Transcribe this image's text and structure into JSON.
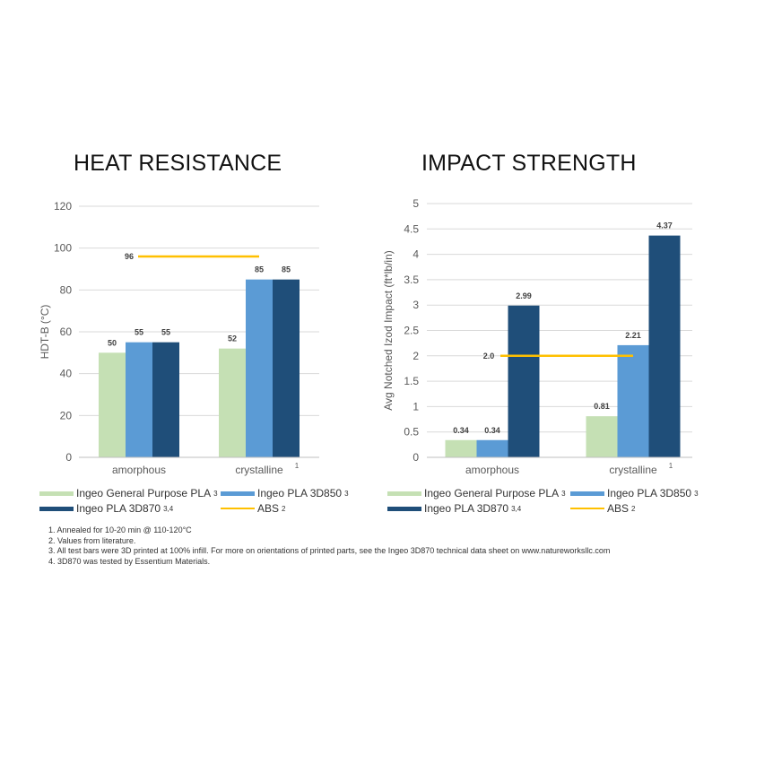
{
  "colors": {
    "general_purpose": "#c5e0b4",
    "pla_3d850": "#5b9bd5",
    "pla_3d870": "#1f4e79",
    "abs": "#ffc000",
    "grid": "#d9d9d9",
    "axis_text": "#595959",
    "data_label": "#404040"
  },
  "legend": {
    "general_purpose": {
      "label": "Ingeo General Purpose PLA",
      "sup": "3"
    },
    "pla_3d850": {
      "label": "Ingeo PLA 3D850",
      "sup": "3"
    },
    "pla_3d870": {
      "label": "Ingeo PLA 3D870",
      "sup": "3,4"
    },
    "abs": {
      "label": "ABS",
      "sup": "2"
    }
  },
  "footnotes": [
    "1. Annealed for 10-20 min @ 110-120°C",
    "2. Values from literature.",
    "3. All test bars were 3D printed at 100% infill. For more on orientations of printed parts, see the Ingeo 3D870 technical data sheet on www.natureworksllc.com",
    "4. 3D870 was tested by Essentium Materials."
  ],
  "chart_data": [
    {
      "type": "bar",
      "title": "HEAT RESISTANCE",
      "xlabel": "",
      "ylabel": "HDT-B (°C)",
      "ylim": [
        0,
        120
      ],
      "yticks": [
        "0",
        "20",
        "40",
        "60",
        "80",
        "100",
        "120"
      ],
      "categories": [
        "amorphous",
        "crystalline"
      ],
      "category_sup": [
        "",
        "1"
      ],
      "series": [
        {
          "name": "Ingeo General Purpose PLA",
          "color_key": "general_purpose",
          "values": [
            50,
            52
          ],
          "labels": [
            "50",
            "52"
          ]
        },
        {
          "name": "Ingeo PLA 3D850",
          "color_key": "pla_3d850",
          "values": [
            55,
            85
          ],
          "labels": [
            "55",
            "85"
          ]
        },
        {
          "name": "Ingeo PLA 3D870",
          "color_key": "pla_3d870",
          "values": [
            55,
            85
          ],
          "labels": [
            "55",
            "85"
          ]
        }
      ],
      "reference_line": {
        "name": "ABS",
        "value": 96,
        "label": "96"
      },
      "grid": true
    },
    {
      "type": "bar",
      "title": "IMPACT STRENGTH",
      "xlabel": "",
      "ylabel": "Avg Notched Izod Impact  (ft*lb/in)",
      "ylim": [
        0,
        5
      ],
      "yticks": [
        "0",
        "0.5",
        "1",
        "1.5",
        "2",
        "2.5",
        "3",
        "3.5",
        "4",
        "4.5",
        "5"
      ],
      "categories": [
        "amorphous",
        "crystalline"
      ],
      "category_sup": [
        "",
        "1"
      ],
      "series": [
        {
          "name": "Ingeo General Purpose PLA",
          "color_key": "general_purpose",
          "values": [
            0.34,
            0.81
          ],
          "labels": [
            "0.34",
            "0.81"
          ]
        },
        {
          "name": "Ingeo PLA 3D850",
          "color_key": "pla_3d850",
          "values": [
            0.34,
            2.21
          ],
          "labels": [
            "0.34",
            "2.21"
          ]
        },
        {
          "name": "Ingeo PLA 3D870",
          "color_key": "pla_3d870",
          "values": [
            2.99,
            4.37
          ],
          "labels": [
            "2.99",
            "4.37"
          ]
        }
      ],
      "reference_line": {
        "name": "ABS",
        "value": 2.0,
        "label": "2.0"
      },
      "grid": true
    }
  ]
}
